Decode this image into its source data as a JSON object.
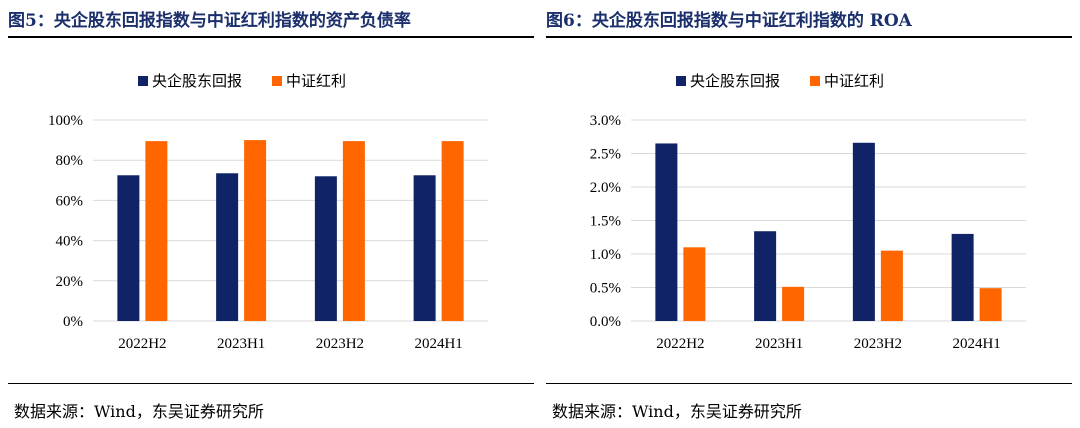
{
  "colors": {
    "navy": "#0f2366",
    "orange": "#ff6600",
    "grid": "#d9d9d9",
    "title": "#1a2f6b"
  },
  "left": {
    "title": "图5：央企股东回报指数与中证红利指数的资产负债率",
    "source": "数据来源：Wind，东吴证券研究所"
  },
  "right": {
    "title": "图6：央企股东回报指数与中证红利指数的 ROA",
    "source": "数据来源：Wind，东吴证券研究所"
  },
  "chart_data": [
    {
      "type": "bar",
      "title": "图5：央企股东回报指数与中证红利指数的资产负债率",
      "categories": [
        "2022H2",
        "2023H1",
        "2023H2",
        "2024H1"
      ],
      "series": [
        {
          "name": "央企股东回报",
          "values": [
            72.5,
            73.5,
            72.0,
            72.5
          ]
        },
        {
          "name": "中证红利",
          "values": [
            89.5,
            90.0,
            89.5,
            89.5
          ]
        }
      ],
      "ylim": [
        0,
        100
      ],
      "yticks": [
        "0%",
        "20%",
        "40%",
        "60%",
        "80%",
        "100%"
      ],
      "ytick_values": [
        0,
        20,
        40,
        60,
        80,
        100
      ],
      "grid": true,
      "legend": "top-center"
    },
    {
      "type": "bar",
      "title": "图6：央企股东回报指数与中证红利指数的 ROA",
      "categories": [
        "2022H2",
        "2023H1",
        "2023H2",
        "2024H1"
      ],
      "series": [
        {
          "name": "央企股东回报",
          "values": [
            2.65,
            1.34,
            2.66,
            1.3
          ]
        },
        {
          "name": "中证红利",
          "values": [
            1.1,
            0.51,
            1.05,
            0.49
          ]
        }
      ],
      "ylim": [
        0,
        3.0
      ],
      "yticks": [
        "0.0%",
        "0.5%",
        "1.0%",
        "1.5%",
        "2.0%",
        "2.5%",
        "3.0%"
      ],
      "ytick_values": [
        0,
        0.5,
        1.0,
        1.5,
        2.0,
        2.5,
        3.0
      ],
      "grid": true,
      "legend": "top-center"
    }
  ]
}
